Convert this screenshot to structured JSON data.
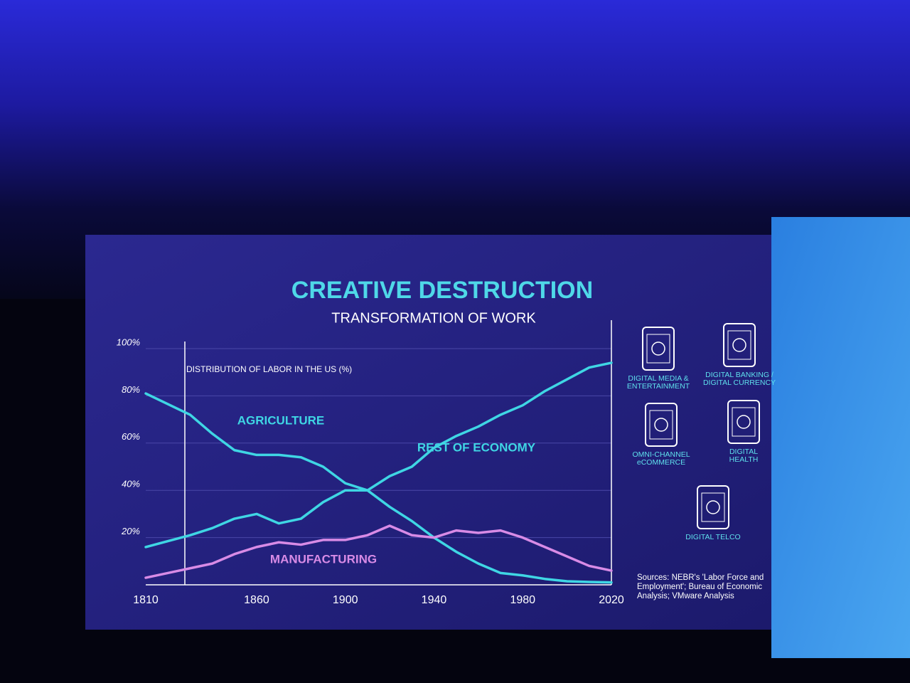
{
  "chart_data": {
    "type": "line",
    "title": "CREATIVE DESTRUCTION",
    "subtitle": "TRANSFORMATION OF WORK",
    "y_label": "DISTRIBUTION OF LABOR IN THE US (%)",
    "x": [
      1810,
      1830,
      1840,
      1850,
      1860,
      1870,
      1880,
      1890,
      1900,
      1910,
      1920,
      1930,
      1940,
      1950,
      1960,
      1970,
      1980,
      1990,
      2000,
      2010,
      2020
    ],
    "series": [
      {
        "name": "AGRICULTURE",
        "color": "#3fd6e4",
        "values": [
          81,
          72,
          64,
          57,
          55,
          55,
          54,
          50,
          43,
          40,
          33,
          27,
          20,
          14,
          9,
          5,
          4,
          2.5,
          1.5,
          1.2,
          1
        ]
      },
      {
        "name": "MANUFACTURING",
        "color": "#d88be6",
        "values": [
          3,
          7,
          9,
          13,
          16,
          18,
          17,
          19,
          19,
          21,
          25,
          21,
          20,
          23,
          22,
          23,
          20,
          16,
          12,
          8,
          6
        ]
      },
      {
        "name": "REST OF ECONOMY",
        "color": "#3fd6e4",
        "values": [
          16,
          21,
          24,
          28,
          30,
          26,
          28,
          35,
          40,
          40,
          46,
          50,
          58,
          63,
          67,
          72,
          76,
          82,
          87,
          92,
          94
        ]
      }
    ],
    "xlim": [
      1810,
      2020
    ],
    "xticks": [
      1810,
      1860,
      1900,
      1940,
      1980,
      2020
    ],
    "ylim": [
      0,
      100
    ],
    "yticks": [
      {
        "value": 20,
        "label": "20%"
      },
      {
        "value": 40,
        "label": "40%"
      },
      {
        "value": 60,
        "label": "60%"
      },
      {
        "value": 80,
        "label": "80%"
      },
      {
        "value": 100,
        "label": "100%"
      }
    ],
    "grid": true
  },
  "sidebar": {
    "items": [
      {
        "lines": [
          "DIGITAL MEDIA &",
          "ENTERTAINMENT"
        ]
      },
      {
        "lines": [
          "DIGITAL BANKING /",
          "DIGITAL CURRENCY"
        ]
      },
      {
        "lines": [
          "OMNI-CHANNEL",
          "eCOMMERCE"
        ]
      },
      {
        "lines": [
          "DIGITAL",
          "HEALTH"
        ]
      },
      {
        "lines": [
          "DIGITAL TELCO"
        ]
      }
    ],
    "sources": [
      "Sources: NEBR's 'Labor Force and",
      "Employment'; Bureau of Economic",
      "Analysis; VMware Analysis"
    ]
  }
}
